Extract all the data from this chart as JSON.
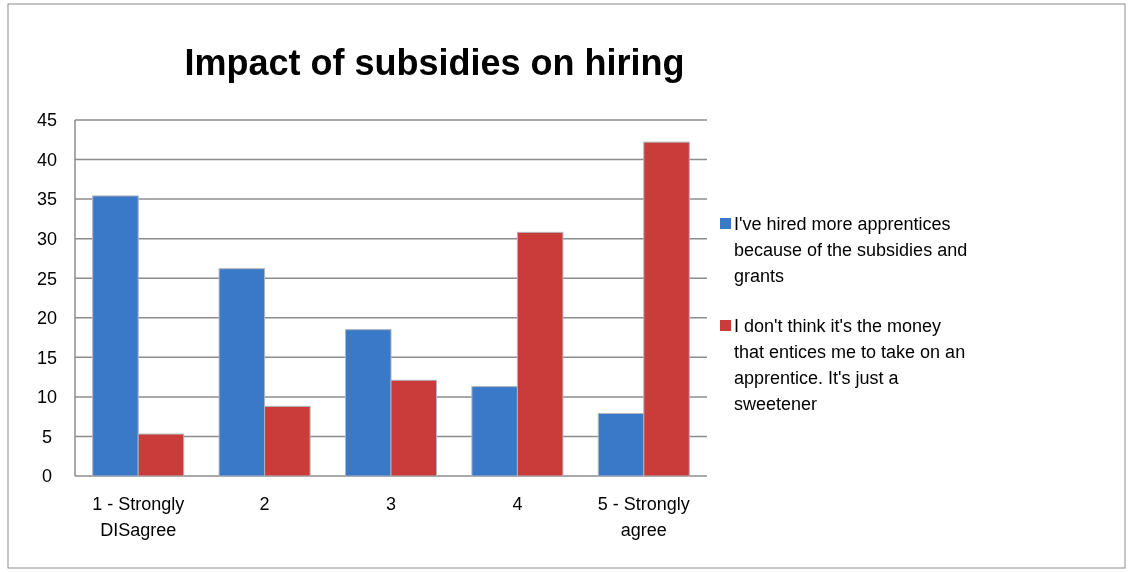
{
  "chart_data": {
    "type": "bar",
    "title": "Impact of subsidies on hiring",
    "categories": [
      "1 - Strongly DISagree",
      "2",
      "3",
      "4",
      "5 - Strongly agree"
    ],
    "series": [
      {
        "name": "I've hired more apprentices because of the subsidies and grants",
        "color": "#3a78c8",
        "values": [
          35.4,
          26.2,
          18.5,
          11.3,
          7.9
        ]
      },
      {
        "name": "I don't think it's the money that entices me to take on an apprentice.  It's just a sweetener",
        "color": "#c93c3a",
        "values": [
          5.3,
          8.8,
          12.1,
          30.8,
          42.2
        ]
      }
    ],
    "ylim": [
      0,
      45
    ],
    "yticks": [
      0,
      5,
      10,
      15,
      20,
      25,
      30,
      35,
      40,
      45
    ],
    "grid": "y",
    "legend": "right"
  }
}
